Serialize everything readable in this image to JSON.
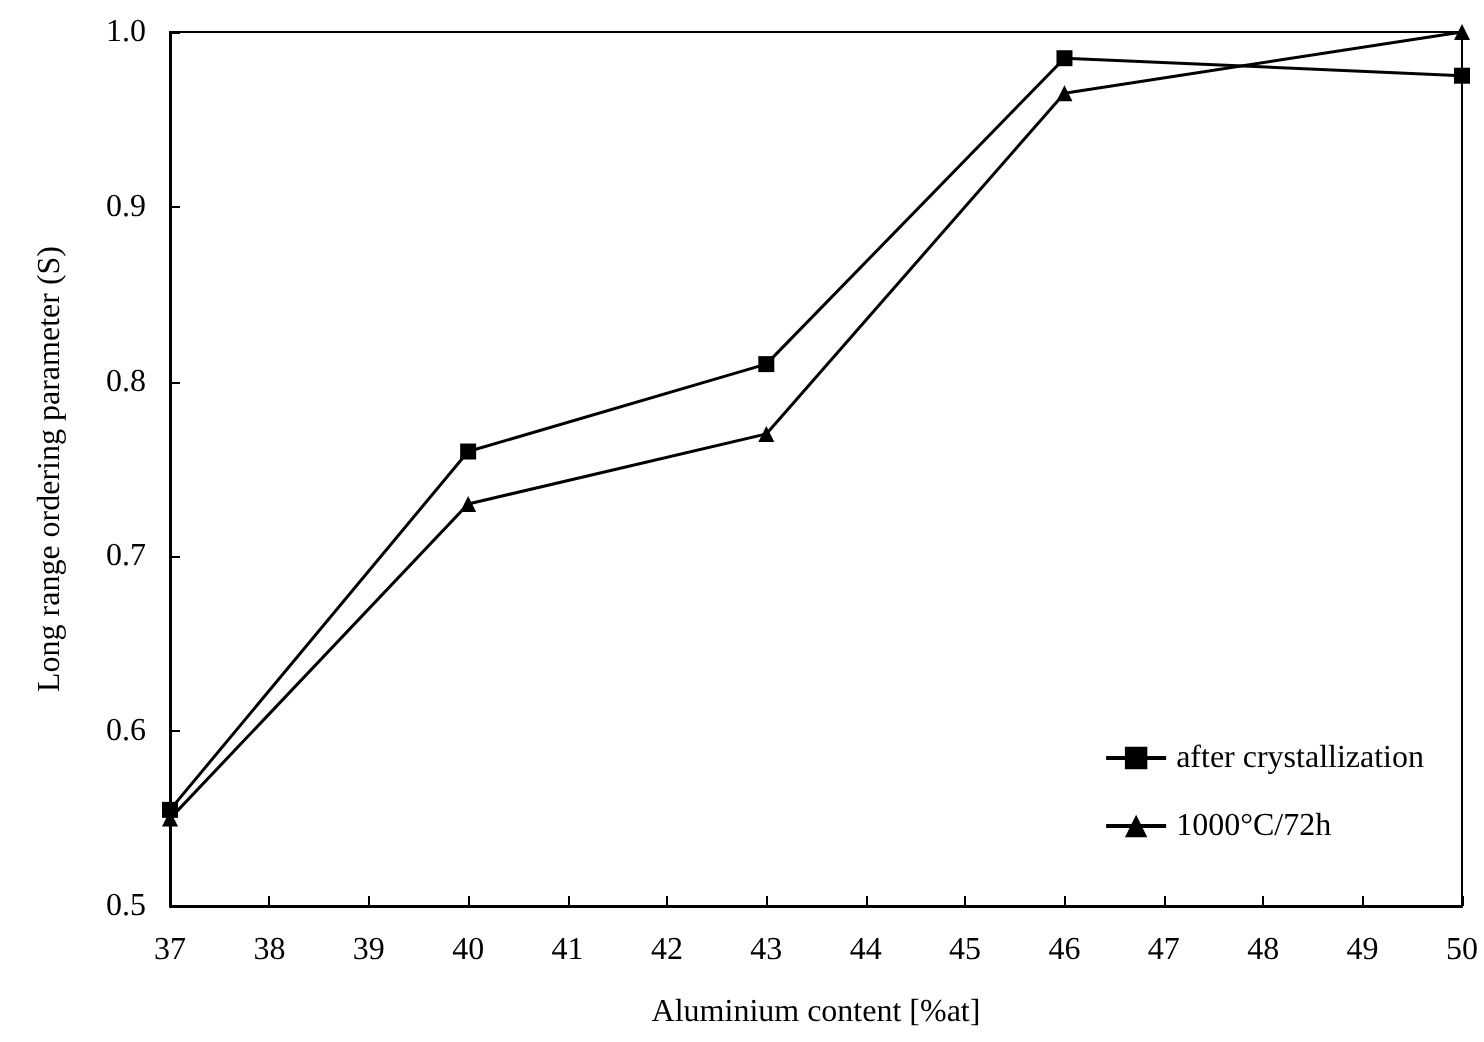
{
  "chart_data": {
    "type": "line",
    "xlabel": "Aluminium content [%at]",
    "ylabel": "Long range ordering parameter (S)",
    "x": [
      37,
      40,
      43,
      46,
      50
    ],
    "series": [
      {
        "name": "after crystallization",
        "color": "#000000",
        "marker": "square",
        "values": [
          0.555,
          0.76,
          0.81,
          0.985,
          0.975
        ]
      },
      {
        "name": "1000°C/72h",
        "color": "#000000",
        "marker": "triangle",
        "values": [
          0.55,
          0.73,
          0.77,
          0.965,
          1.0
        ]
      }
    ],
    "xlim": [
      37,
      50
    ],
    "xticks": [
      37,
      38,
      39,
      40,
      41,
      42,
      43,
      44,
      45,
      46,
      47,
      48,
      49,
      50
    ],
    "ylim": [
      0.5,
      1.0
    ],
    "yticks": [
      {
        "value": 0.5,
        "label": "0.5"
      },
      {
        "value": 0.6,
        "label": "0.6"
      },
      {
        "value": 0.7,
        "label": "0.7"
      },
      {
        "value": 0.8,
        "label": "0.8"
      },
      {
        "value": 0.9,
        "label": "0.9"
      },
      {
        "value": 1.0,
        "label": "1.0"
      }
    ],
    "grid": false,
    "legend": "bottom right",
    "line_style": "solid"
  }
}
